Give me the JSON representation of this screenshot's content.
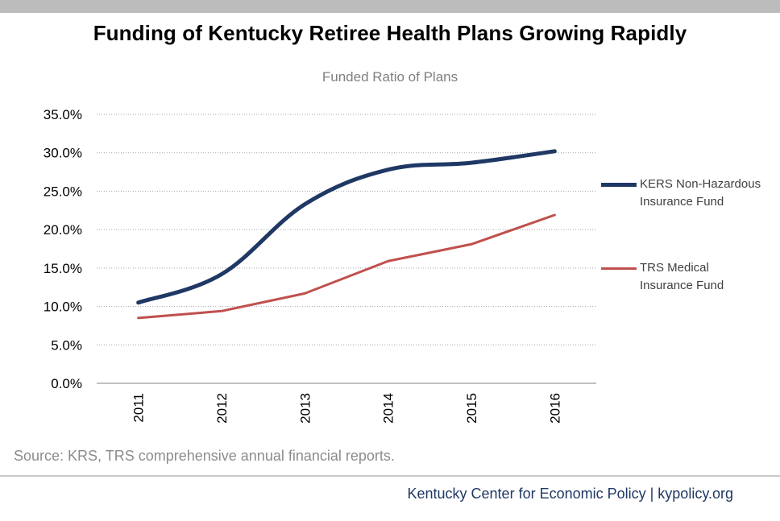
{
  "header": {
    "title": "Funding of Kentucky Retiree Health Plans Growing Rapidly"
  },
  "chart_data": {
    "type": "line",
    "title": "Funded Ratio of Plans",
    "xlabel": "",
    "ylabel": "",
    "categories": [
      "2011",
      "2012",
      "2013",
      "2014",
      "2015",
      "2016"
    ],
    "ylim": [
      0,
      35
    ],
    "yticks": [
      "0.0%",
      "5.0%",
      "10.0%",
      "15.0%",
      "20.0%",
      "25.0%",
      "30.0%",
      "35.0%"
    ],
    "grid": "horizontal dotted",
    "legend_position": "right",
    "series": [
      {
        "name": "KERS Non-Hazardous Insurance Fund",
        "name_lines": [
          "KERS Non-Hazardous",
          "Insurance Fund"
        ],
        "values": [
          10.5,
          14.2,
          23.3,
          27.8,
          28.7,
          30.2
        ],
        "color": "#1f3864",
        "smooth": true
      },
      {
        "name": "TRS Medical Insurance Fund",
        "name_lines": [
          "TRS Medical",
          "Insurance Fund"
        ],
        "values": [
          8.5,
          9.4,
          11.7,
          15.9,
          18.1,
          21.9
        ],
        "color": "#c0504d",
        "smooth": false
      }
    ]
  },
  "source": "Source: KRS, TRS comprehensive annual financial reports.",
  "footer": "Kentucky Center for Economic Policy | kypolicy.org"
}
